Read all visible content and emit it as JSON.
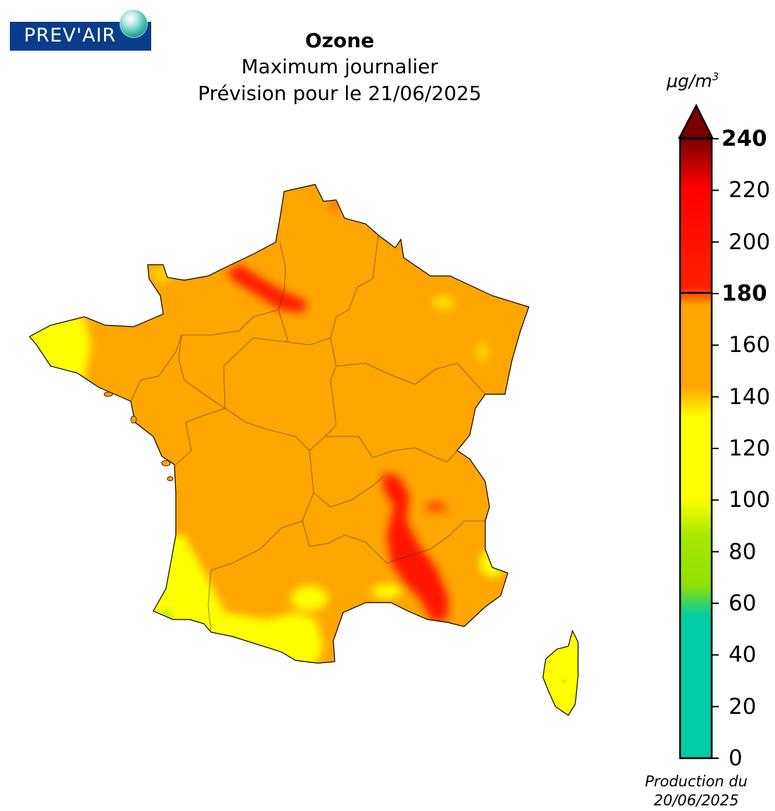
{
  "logo": {
    "text": "PREV'AIR"
  },
  "title": {
    "line1": "Ozone",
    "line2": "Maximum journalier",
    "line3": "Prévision pour le 21/06/2025"
  },
  "legend": {
    "unit_base": "μg/m",
    "unit_exp": "3",
    "ticks": [
      {
        "value": 240,
        "label": "240",
        "bold": true
      },
      {
        "value": 220,
        "label": "220",
        "bold": false
      },
      {
        "value": 200,
        "label": "200",
        "bold": false
      },
      {
        "value": 180,
        "label": "180",
        "bold": true
      },
      {
        "value": 160,
        "label": "160",
        "bold": false
      },
      {
        "value": 140,
        "label": "140",
        "bold": false
      },
      {
        "value": 120,
        "label": "120",
        "bold": false
      },
      {
        "value": 100,
        "label": "100",
        "bold": false
      },
      {
        "value": 80,
        "label": "80",
        "bold": false
      },
      {
        "value": 60,
        "label": "60",
        "bold": false
      },
      {
        "value": 40,
        "label": "40",
        "bold": false
      },
      {
        "value": 20,
        "label": "20",
        "bold": false
      },
      {
        "value": 0,
        "label": "0",
        "bold": false
      }
    ],
    "colors": {
      "teal": "#00cca6",
      "green": "#99e600",
      "yellow": "#ffff00",
      "orange": "#ffa500",
      "red": "#ff0000",
      "darkred": "#7a0000"
    }
  },
  "footer": {
    "line1": "Production du",
    "line2": "20/06/2025"
  }
}
